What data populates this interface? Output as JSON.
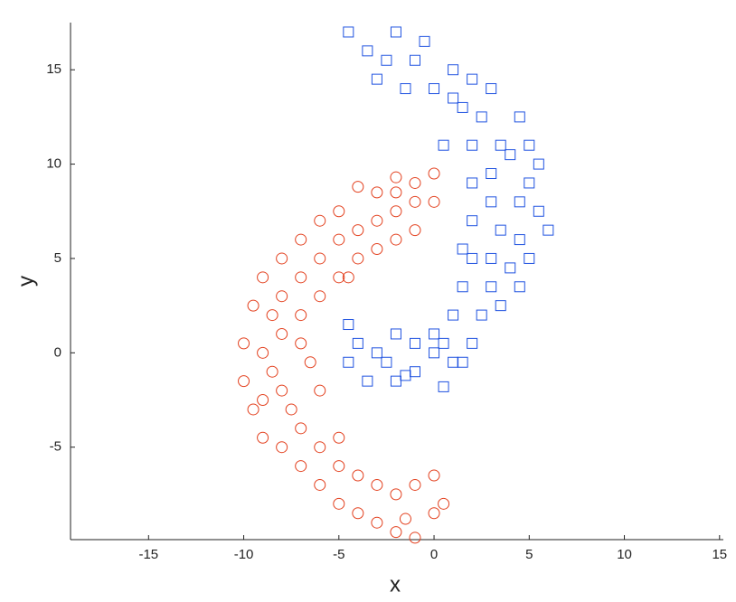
{
  "chart_data": {
    "type": "scatter",
    "xlabel": "x",
    "ylabel": "y",
    "xlim": [
      -19.1,
      15.2
    ],
    "ylim": [
      -9.9,
      17.5
    ],
    "xticks": [
      -15,
      -10,
      -5,
      0,
      5,
      10,
      15
    ],
    "yticks": [
      -5,
      0,
      5,
      10,
      15
    ],
    "series": [
      {
        "marker": "circle",
        "color": "#e3401e",
        "x": [
          0,
          -1,
          -2,
          -3,
          -4,
          -5,
          -6,
          -7,
          -8,
          -9,
          -9.5,
          -8,
          -7,
          -6,
          -5,
          -4,
          -3,
          -2,
          -1,
          0,
          -1,
          -2,
          -3,
          -4,
          -5,
          -6,
          -7,
          -8,
          -9,
          -10,
          -10,
          -9.5,
          -9,
          -8,
          -7,
          -6,
          -5,
          -4,
          -3,
          -2,
          -1,
          0,
          0,
          -1,
          -2,
          -3,
          -4,
          -5,
          -6,
          -7,
          -7.5,
          -8,
          -8.5,
          -6,
          -5,
          -6.5,
          -7,
          -4.5,
          -2,
          0.5,
          -1.5,
          -8.5,
          -9
        ],
        "values": [
          9.5,
          9,
          9.3,
          8.5,
          8.8,
          7.5,
          7,
          6,
          5,
          4,
          2.5,
          3,
          4,
          5,
          6,
          6.5,
          7,
          7.5,
          8,
          8,
          6.5,
          6,
          5.5,
          5,
          4,
          3,
          2,
          1,
          0,
          0.5,
          -1.5,
          -3,
          -4.5,
          -5,
          -6,
          -7,
          -8,
          -8.5,
          -9,
          -9.5,
          -9.8,
          -8.5,
          -6.5,
          -7,
          -7.5,
          -7,
          -6.5,
          -6,
          -5,
          -4,
          -3,
          -2,
          -1,
          -2,
          -4.5,
          -0.5,
          0.5,
          4,
          8.5,
          -8,
          -8.8,
          2,
          -2.5
        ]
      },
      {
        "marker": "square",
        "color": "#1f52e0",
        "x": [
          -4.5,
          -3.5,
          -2,
          -1,
          0,
          1,
          2,
          -3,
          -2.5,
          -0.5,
          1.5,
          2.5,
          3,
          3.5,
          4.5,
          5,
          5.5,
          4,
          2,
          3,
          5,
          4.5,
          3,
          5.5,
          6,
          4.5,
          3.5,
          2,
          5,
          4,
          3,
          2,
          1.5,
          3,
          4.5,
          2.5,
          1,
          3.5,
          0.5,
          1,
          0,
          -1,
          -2,
          -3,
          -4,
          -4.5,
          -3.5,
          -2,
          -1,
          0,
          2,
          1.5,
          -4.5,
          -2.5,
          -1.5,
          0.5,
          1,
          -1.5,
          0.5,
          2,
          1.5
        ],
        "values": [
          17,
          16,
          17,
          15.5,
          14,
          15,
          14.5,
          14.5,
          15.5,
          16.5,
          13,
          12.5,
          14,
          11,
          12.5,
          11,
          10,
          10.5,
          11,
          9.5,
          9,
          8,
          8,
          7.5,
          6.5,
          6,
          6.5,
          7,
          5,
          4.5,
          5,
          5,
          3.5,
          3.5,
          3.5,
          2,
          2,
          2.5,
          0.5,
          -0.5,
          1,
          0.5,
          1,
          0,
          0.5,
          -0.5,
          -1.5,
          -1.5,
          -1,
          0,
          0.5,
          -0.5,
          1.5,
          -0.5,
          -1.2,
          -1.8,
          13.5,
          14,
          11,
          9,
          5.5
        ]
      }
    ]
  }
}
